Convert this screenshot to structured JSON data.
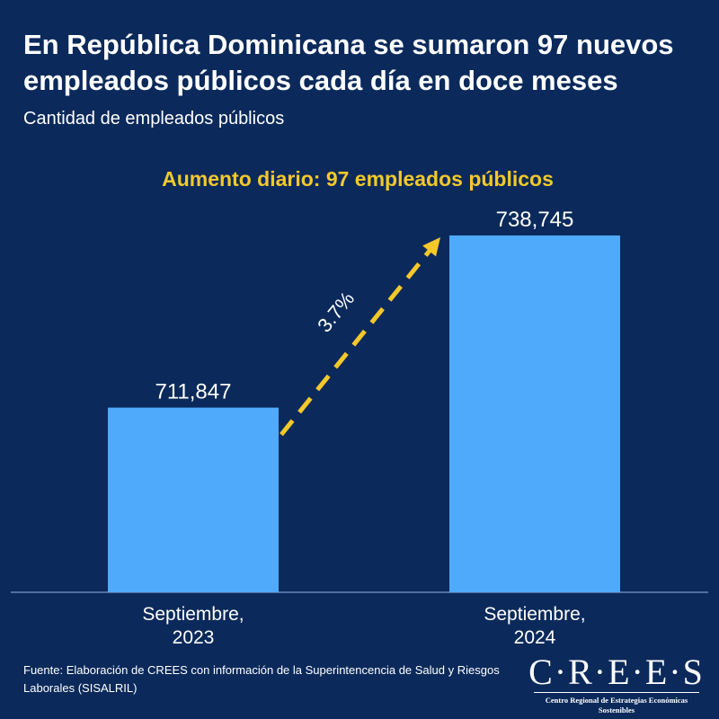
{
  "header": {
    "title_line1": "En República Dominicana se sumaron 97 nuevos",
    "title_line2": "empleados públicos cada día en doce meses",
    "subtitle": "Cantidad de empleados públicos"
  },
  "chart_data": {
    "type": "bar",
    "title": "Aumento diario: 97 empleados públicos",
    "categories": [
      [
        "Septiembre,",
        "2023"
      ],
      [
        "Septiembre,",
        "2024"
      ]
    ],
    "values": [
      711847,
      738745
    ],
    "value_labels": [
      "711,847",
      "738,745"
    ],
    "annotation": "3.7%",
    "ylim": [
      0,
      738745
    ],
    "xlabel": "",
    "ylabel": "",
    "grid": false,
    "colors": {
      "bar": "#4faafc",
      "arrow": "#f4c82b",
      "title": "#f4c82b",
      "axis": "#6b86b3"
    }
  },
  "footer": {
    "source": "Fuente: Elaboración de CREES con información de la Superintencencia de Salud y Riesgos Laborales (SISALRIL)"
  },
  "logo": {
    "wordmark": "C·R·E·E·S",
    "tagline": "Centro Regional de Estrategias Económicas Sostenibles"
  }
}
